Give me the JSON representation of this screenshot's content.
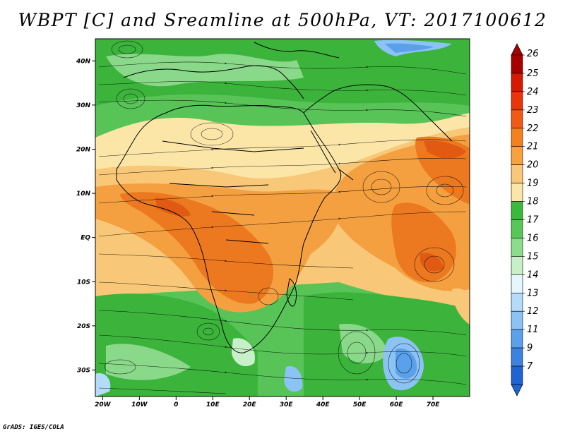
{
  "title": "WBPT [C] and Sreamline at 500hPa, VT: 2017100612",
  "credit": "GrADS: IGES/COLA",
  "map": {
    "lon_range": [
      -22,
      80
    ],
    "lat_range": [
      -36,
      45
    ],
    "lat_ticks": [
      {
        "value": 40,
        "label": "40N"
      },
      {
        "value": 30,
        "label": "30N"
      },
      {
        "value": 20,
        "label": "20N"
      },
      {
        "value": 10,
        "label": "10N"
      },
      {
        "value": 0,
        "label": "EQ"
      },
      {
        "value": -10,
        "label": "10S"
      },
      {
        "value": -20,
        "label": "20S"
      },
      {
        "value": -30,
        "label": "30S"
      }
    ],
    "lon_ticks": [
      {
        "value": -20,
        "label": "20W"
      },
      {
        "value": -10,
        "label": "10W"
      },
      {
        "value": 0,
        "label": "0"
      },
      {
        "value": 10,
        "label": "10E"
      },
      {
        "value": 20,
        "label": "20E"
      },
      {
        "value": 30,
        "label": "30E"
      },
      {
        "value": 40,
        "label": "40E"
      },
      {
        "value": 50,
        "label": "50E"
      },
      {
        "value": 60,
        "label": "60E"
      },
      {
        "value": 70,
        "label": "70E"
      }
    ]
  },
  "colorbar": {
    "labels": [
      "26",
      "25",
      "24",
      "23",
      "22",
      "21",
      "20",
      "19",
      "18",
      "17",
      "16",
      "15",
      "14",
      "13",
      "12",
      "11",
      "9",
      "7"
    ],
    "colors": [
      "#a60000",
      "#d41a00",
      "#e8350a",
      "#f05a14",
      "#f5801e",
      "#f7a23c",
      "#f8c878",
      "#fbe6a8",
      "#3ab93a",
      "#56c856",
      "#8cdc8c",
      "#c8f0c8",
      "#e6f6ff",
      "#b4dcfa",
      "#8cc3f5",
      "#5aa0eb",
      "#3c82e1",
      "#1e64d2"
    ]
  },
  "palette": {
    "ocean_green": "#5ec85e",
    "dark_green": "#3ab43a",
    "light_green": "#9ee09e",
    "pale_yellow": "#fbe6a8",
    "light_orange": "#f8c878",
    "orange": "#f4a040",
    "dark_orange": "#ec7820",
    "red_orange": "#e05a14",
    "light_blue": "#a8d4f8",
    "blue": "#6eaaf0"
  }
}
